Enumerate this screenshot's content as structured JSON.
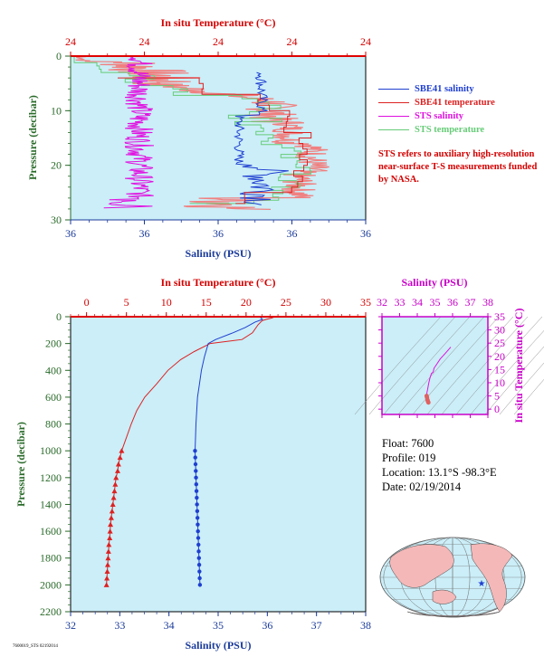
{
  "colors": {
    "plot_bg": "#cbeef8",
    "sbe_salinity": "#1f3fd0",
    "sbe_temperature": "#dd2222",
    "sts_salinity": "#e010e0",
    "sts_temperature": "#66cc77",
    "sts_temperature_fill": "#f08080",
    "axis_red": "#d40000",
    "axis_blue": "#1a3a9a",
    "axis_green": "#2a6a2a",
    "axis_magenta": "#c800c8"
  },
  "legend": {
    "items": [
      {
        "label": "SBE41 salinity",
        "color": "#1f3fd0"
      },
      {
        "label": "SBE41 temperature",
        "color": "#dd2222"
      },
      {
        "label": "STS salinity",
        "color": "#e010e0"
      },
      {
        "label": "STS temperature",
        "color": "#66cc77"
      }
    ],
    "note": "STS refers to auxiliary high-resolution near-surface T-S measurements funded by NASA."
  },
  "info": {
    "float": "Float:  7600",
    "profile": "Profile:  019",
    "location": "Location:  13.1°S  -98.3°E",
    "date": "Date:  02/19/2014"
  },
  "footer_code": "7600019_STS 02192014",
  "chart_data": [
    {
      "id": "near-surface",
      "type": "line",
      "top_axis_label": "In situ Temperature (°C)",
      "top_ticks": [
        "24",
        "24",
        "24",
        "24",
        "24"
      ],
      "xlabel": "Salinity (PSU)",
      "x_ticks": [
        "36",
        "36",
        "36",
        "36",
        "36"
      ],
      "ylabel": "Pressure (decibar)",
      "y_ticks": [
        "0",
        "10",
        "20",
        "30"
      ],
      "ylim": [
        30,
        0
      ],
      "series": [
        {
          "name": "SBE41 salinity"
        },
        {
          "name": "SBE41 temperature"
        },
        {
          "name": "STS salinity"
        },
        {
          "name": "STS temperature"
        }
      ]
    },
    {
      "id": "full-profile",
      "type": "line",
      "top_axis_label": "In situ Temperature (°C)",
      "temp_ticks": [
        0,
        5,
        10,
        15,
        20,
        25,
        30,
        35
      ],
      "temp_range": [
        -2,
        35
      ],
      "xlabel": "Salinity (PSU)",
      "sal_ticks": [
        32,
        33,
        34,
        35,
        36,
        37,
        38
      ],
      "sal_range": [
        32,
        38
      ],
      "ylabel": "Pressure (decibar)",
      "y_ticks": [
        0,
        200,
        400,
        600,
        800,
        1000,
        1200,
        1400,
        1600,
        1800,
        2000,
        2200
      ],
      "ylim": [
        2200,
        0
      ],
      "temperature_profile": {
        "p": [
          0,
          10,
          20,
          30,
          60,
          120,
          170,
          200,
          260,
          320,
          400,
          500,
          600,
          700,
          800,
          900,
          1000
        ],
        "t": [
          23.6,
          23.2,
          22.5,
          22.0,
          21.5,
          20.8,
          19.5,
          15.5,
          13.5,
          11.8,
          10.2,
          8.8,
          7.3,
          6.3,
          5.6,
          5.0,
          4.4
        ]
      },
      "temperature_bottles": {
        "p": [
          1000,
          1050,
          1100,
          1150,
          1200,
          1250,
          1300,
          1350,
          1400,
          1450,
          1500,
          1550,
          1600,
          1650,
          1700,
          1750,
          1800,
          1850,
          1900,
          1950,
          2000
        ],
        "t": [
          4.4,
          4.2,
          4.0,
          3.9,
          3.7,
          3.6,
          3.5,
          3.4,
          3.3,
          3.2,
          3.1,
          3.0,
          2.95,
          2.9,
          2.8,
          2.75,
          2.7,
          2.65,
          2.6,
          2.55,
          2.5
        ]
      },
      "salinity_profile": {
        "p": [
          0,
          20,
          40,
          80,
          120,
          170,
          200,
          300,
          400,
          500,
          600,
          800,
          1000
        ],
        "s": [
          35.85,
          35.9,
          35.75,
          35.55,
          35.3,
          34.95,
          34.8,
          34.72,
          34.66,
          34.62,
          34.58,
          34.55,
          34.53
        ]
      },
      "salinity_bottles": {
        "p": [
          1000,
          1050,
          1100,
          1150,
          1200,
          1250,
          1300,
          1350,
          1400,
          1450,
          1500,
          1550,
          1600,
          1650,
          1700,
          1750,
          1800,
          1850,
          1900,
          1950,
          2000
        ],
        "s": [
          34.53,
          34.535,
          34.54,
          34.545,
          34.55,
          34.555,
          34.56,
          34.565,
          34.57,
          34.575,
          34.58,
          34.585,
          34.59,
          34.595,
          34.6,
          34.605,
          34.61,
          34.615,
          34.62,
          34.625,
          34.63
        ]
      }
    },
    {
      "id": "ts-diagram",
      "type": "scatter",
      "top_axis_label": "Salinity (PSU)",
      "sal_ticks": [
        32,
        33,
        34,
        35,
        36,
        37,
        38
      ],
      "sal_range": [
        32,
        38
      ],
      "right_axis_label": "In situ Temperature (°C)",
      "temp_ticks": [
        0,
        5,
        10,
        15,
        20,
        25,
        30,
        35
      ],
      "temp_range": [
        -2,
        35
      ],
      "points": {
        "s": [
          35.9,
          35.7,
          35.5,
          35.3,
          35.1,
          34.95,
          34.9,
          34.8,
          34.72,
          34.66,
          34.62,
          34.58,
          34.55,
          34.53,
          34.55,
          34.58,
          34.6,
          34.63
        ],
        "t": [
          23.5,
          22.0,
          20.5,
          19.0,
          17.0,
          15.5,
          14.0,
          13.5,
          11.8,
          10.2,
          8.8,
          7.3,
          6.3,
          5.0,
          4.4,
          3.5,
          3.0,
          2.5
        ]
      }
    }
  ],
  "map": {
    "marker_label": "float position"
  }
}
